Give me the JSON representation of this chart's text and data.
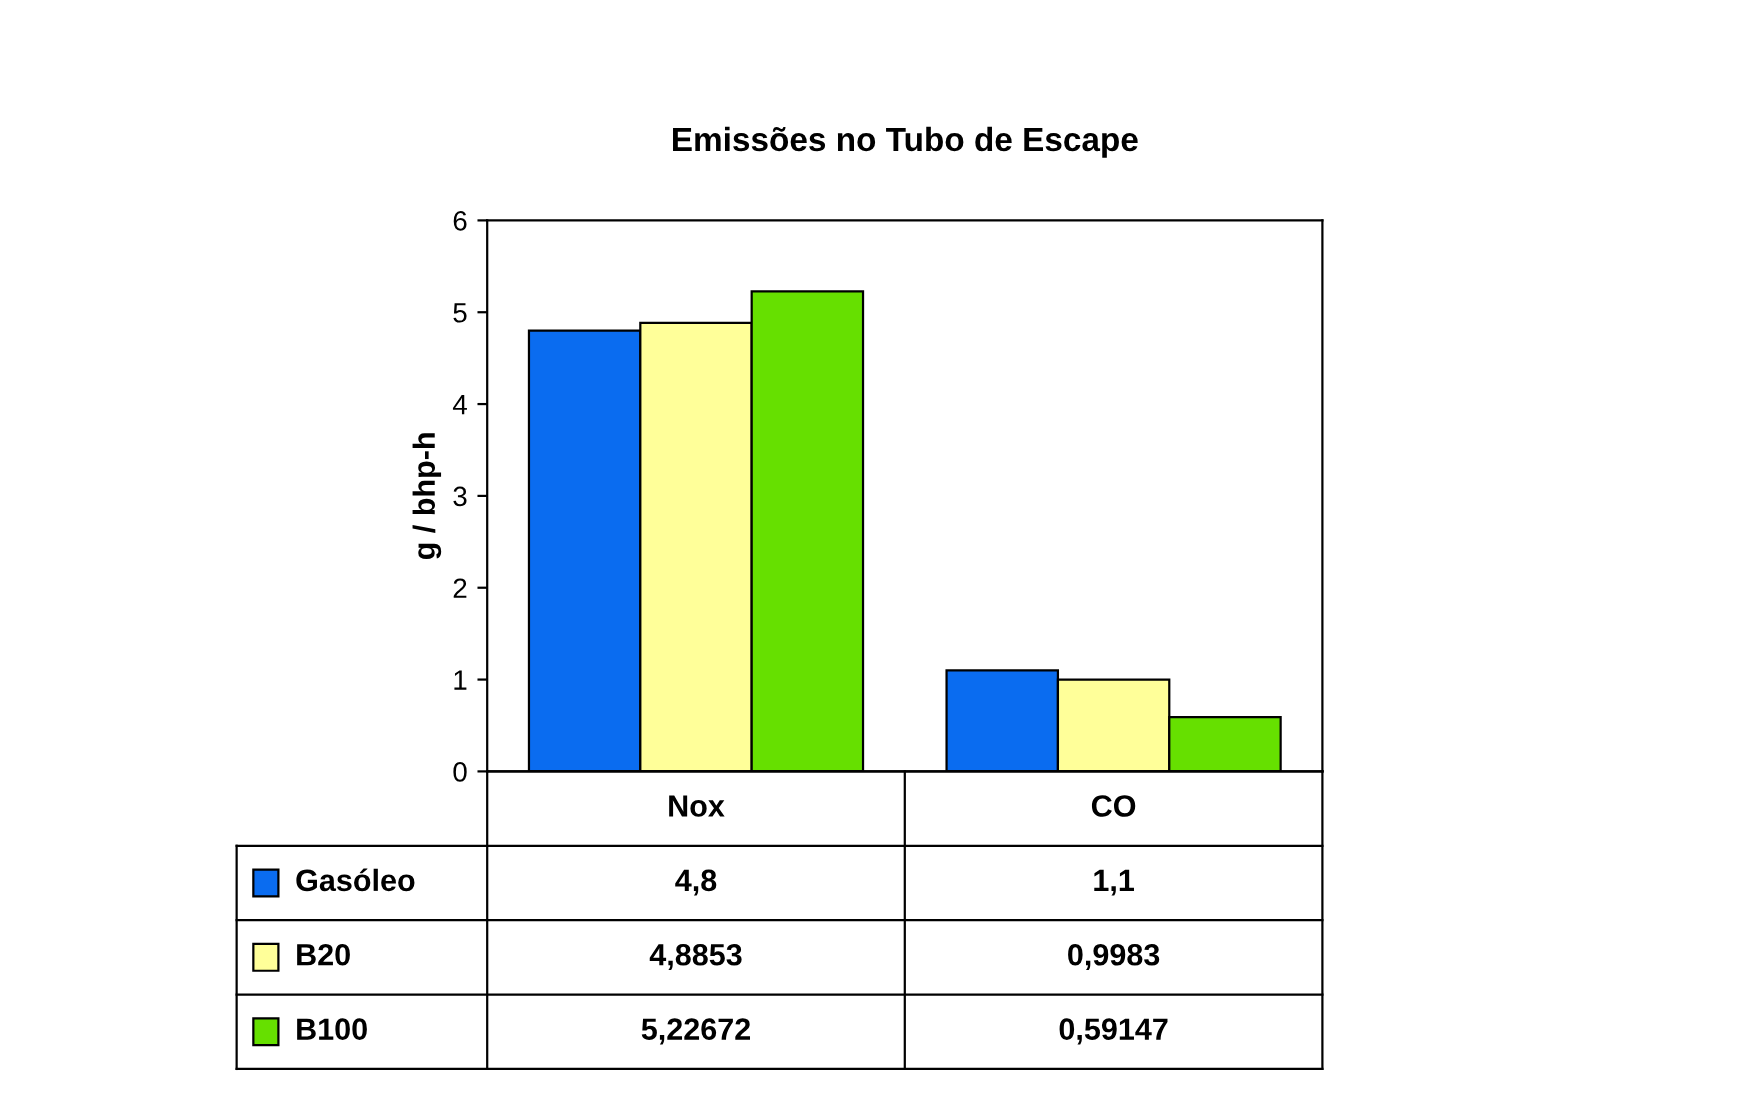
{
  "chart_data": {
    "type": "bar",
    "title": "Emissões no Tubo de Escape",
    "ylabel": "g / bhp-h",
    "categories": [
      "Nox",
      "CO"
    ],
    "series": [
      {
        "name": "Gasóleo",
        "color": "#0a6cf0",
        "values": [
          4.8,
          1.1
        ],
        "value_labels": [
          "4,8",
          "1,1"
        ]
      },
      {
        "name": "B20",
        "color": "#ffff99",
        "values": [
          4.8853,
          0.9983
        ],
        "value_labels": [
          "4,8853",
          "0,9983"
        ]
      },
      {
        "name": "B100",
        "color": "#66e000",
        "values": [
          5.22672,
          0.59147
        ],
        "value_labels": [
          "5,22672",
          "0,59147"
        ]
      }
    ],
    "ylim": [
      0,
      6
    ],
    "yticks": [
      0,
      1,
      2,
      3,
      4,
      5,
      6
    ],
    "grid": false,
    "legend": "bottom"
  }
}
